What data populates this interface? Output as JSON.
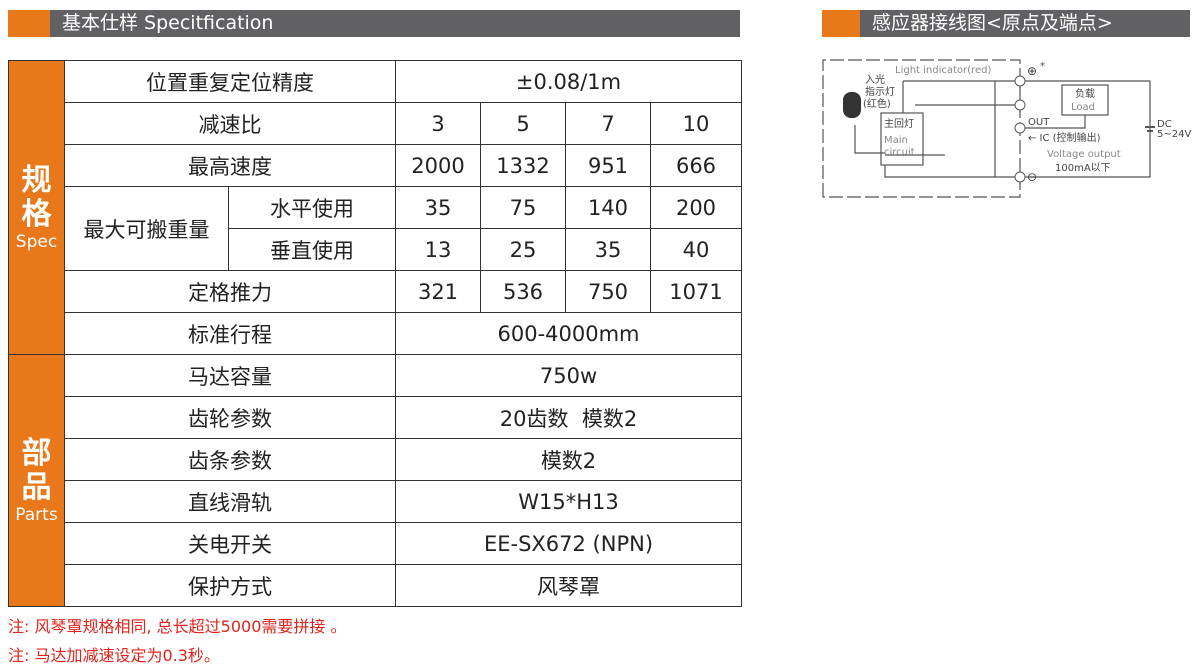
{
  "spec_header": {
    "title": "基本仕样 Specitfication"
  },
  "wiring_header": {
    "title": "感应器接线图<原点及端点>"
  },
  "table": {
    "spec_label": "规格",
    "spec_label_en": "Spec",
    "parts_label": "部品",
    "parts_label_en": "Parts",
    "rows": {
      "precision": {
        "label": "位置重复定位精度",
        "value": "±0.08/1m"
      },
      "ratio": {
        "label": "减速比",
        "values": [
          "3",
          "5",
          "7",
          "10"
        ]
      },
      "speed": {
        "label": "最高速度",
        "values": [
          "2000",
          "1332",
          "951",
          "666"
        ]
      },
      "payload": {
        "label": "最大可搬重量",
        "horizontal": {
          "label": "水平使用",
          "values": [
            "35",
            "75",
            "140",
            "200"
          ]
        },
        "vertical": {
          "label": "垂直使用",
          "values": [
            "13",
            "25",
            "35",
            "40"
          ]
        }
      },
      "thrust": {
        "label": "定格推力",
        "values": [
          "321",
          "536",
          "750",
          "1071"
        ]
      },
      "stroke": {
        "label": "标准行程",
        "value": "600-4000mm"
      },
      "motor": {
        "label": "马达容量",
        "value": "750w"
      },
      "gear": {
        "label": "齿轮参数",
        "value": "20齿数  模数2"
      },
      "rack": {
        "label": "齿条参数",
        "value": "模数2"
      },
      "rail": {
        "label": "直线滑轨",
        "value": "W15*H13"
      },
      "switch": {
        "label": "关电开关",
        "value": "EE-SX672 (NPN)"
      },
      "protection": {
        "label": "保护方式",
        "value": "风琴罩"
      }
    }
  },
  "notes": [
    "注: 风琴罩规格相同, 总长超过5000需要拼接 。",
    "注: 马达加减速设定为0.3秒。"
  ],
  "diagram": {
    "light_indicator": "Light indicator(red)",
    "led_label_1": "入光",
    "led_label_2": "指示灯",
    "led_label_3": "(红色)",
    "main_circuit_cn": "主回灯",
    "main_circuit_en_1": "Main",
    "main_circuit_en_2": "circuit",
    "load_cn": "负载",
    "load_en": "Load",
    "out": "OUT",
    "ic": "← IC (控制输出)",
    "voltage_output": "Voltage output",
    "current": "100mA以下",
    "dc": "DC",
    "dc_range": "5~24V",
    "plus": "⊕",
    "minus": "⊖",
    "star": "*"
  },
  "colors": {
    "accent": "#e8781a",
    "header_gray": "#616164",
    "note_red": "#e0231c"
  }
}
